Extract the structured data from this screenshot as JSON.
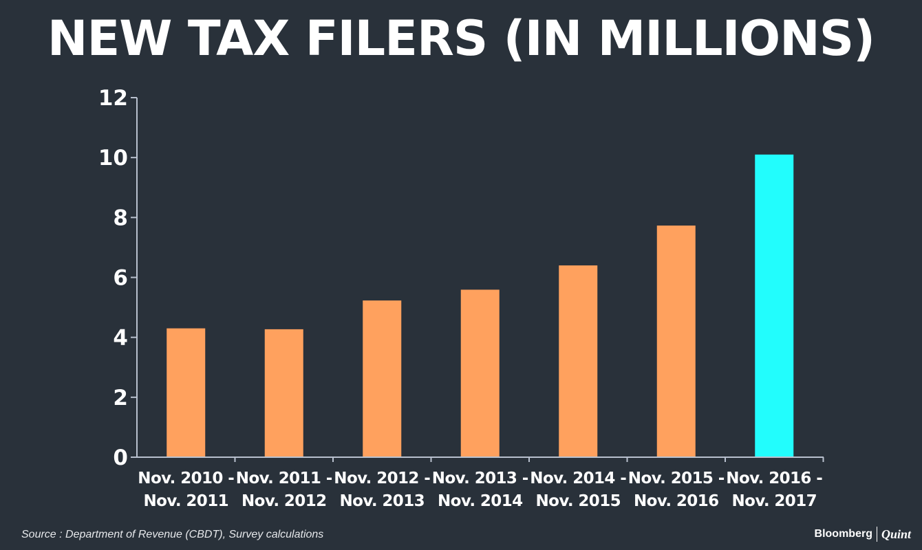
{
  "title": "NEW TAX FILERS (IN MILLIONS)",
  "source": "Source : Department of Revenue (CBDT), Survey calculations",
  "brand": {
    "name": "Bloomberg",
    "sub": "Quint"
  },
  "colors": {
    "background": "#29313a",
    "bar": "#ffa15e",
    "highlight": "#22fdfd",
    "axis": "#b9c1cf",
    "text": "#ffffff"
  },
  "chart_data": {
    "type": "bar",
    "title": "NEW TAX FILERS (IN MILLIONS)",
    "categories": [
      [
        "Nov. 2010 -",
        "Nov. 2011"
      ],
      [
        "Nov. 2011 -",
        "Nov. 2012"
      ],
      [
        "Nov. 2012 -",
        "Nov. 2013"
      ],
      [
        "Nov. 2013 -",
        "Nov. 2014"
      ],
      [
        "Nov. 2014 -",
        "Nov. 2015"
      ],
      [
        "Nov. 2015 -",
        "Nov. 2016"
      ],
      [
        "Nov. 2016 -",
        "Nov. 2017"
      ]
    ],
    "values": [
      4.3,
      4.27,
      5.23,
      5.59,
      6.4,
      7.73,
      10.1
    ],
    "highlight_index": 6,
    "ylim": [
      0,
      12
    ],
    "yticks": [
      0,
      2,
      4,
      6,
      8,
      10,
      12
    ],
    "xlabel": "",
    "ylabel": "",
    "grid": false,
    "legend": "none"
  }
}
